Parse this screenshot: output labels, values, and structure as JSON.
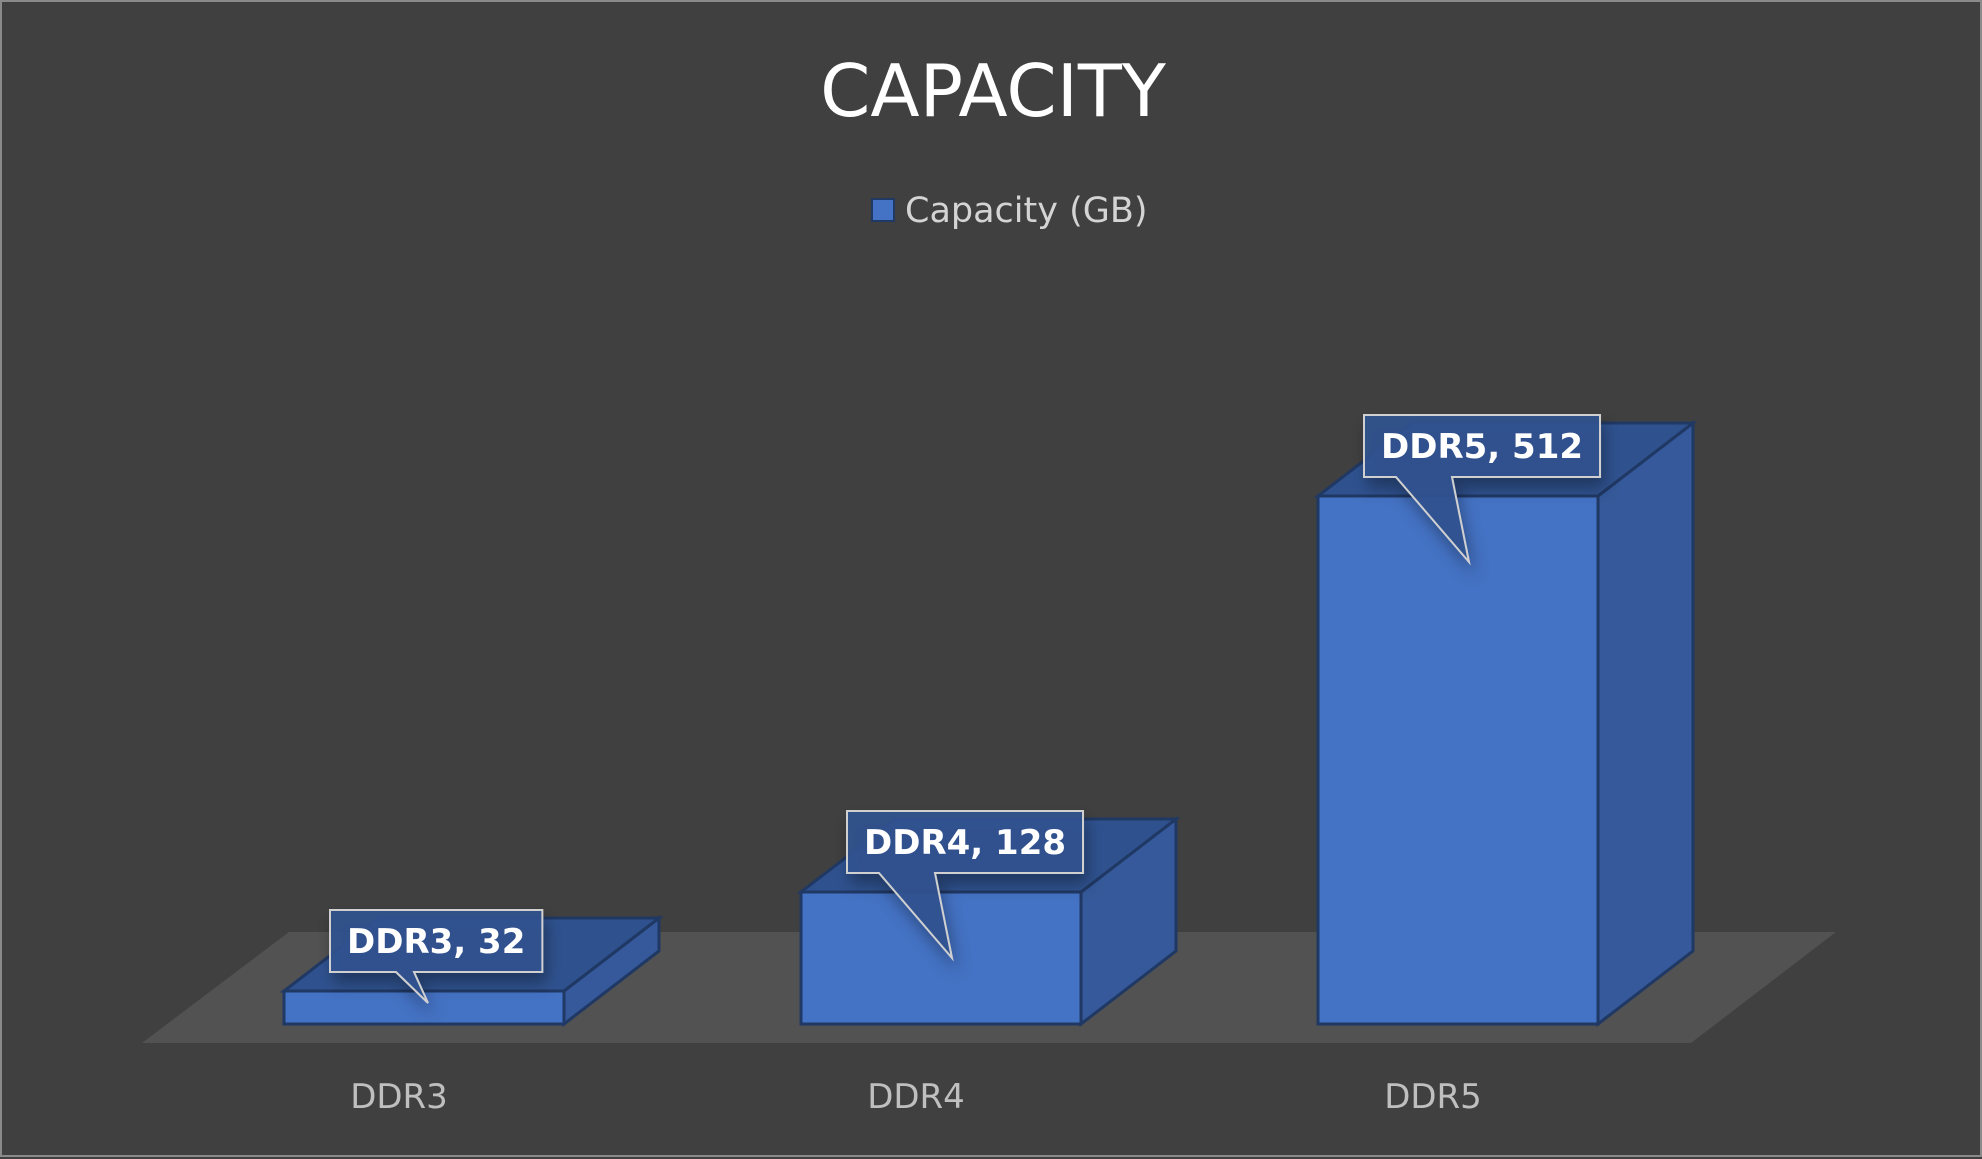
{
  "chart_data": {
    "type": "bar",
    "title": "CAPACITY",
    "categories": [
      "DDR3",
      "DDR4",
      "DDR5"
    ],
    "series": [
      {
        "name": "Capacity (GB)",
        "values": [
          32,
          128,
          512
        ]
      }
    ],
    "data_labels": [
      "DDR3, 32",
      "DDR4, 128",
      "DDR5, 512"
    ],
    "xlabel": "",
    "ylabel": "",
    "ylim": [
      0,
      512
    ],
    "grid": false,
    "legend_position": "top",
    "style": "3d-column",
    "colors": {
      "background": "#404040",
      "bar_front": "#4472c4",
      "bar_top": "#2f528f",
      "bar_side": "#35599a",
      "bar_edge": "#203864",
      "floor": "#525252"
    }
  }
}
